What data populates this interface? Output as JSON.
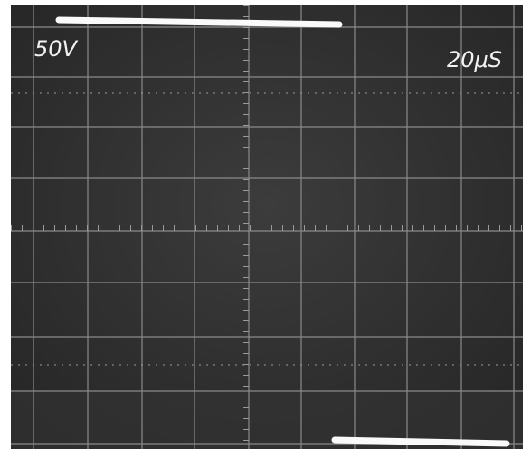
{
  "scope": {
    "volts_per_div": "50V",
    "time_per_div": "20μS"
  }
}
